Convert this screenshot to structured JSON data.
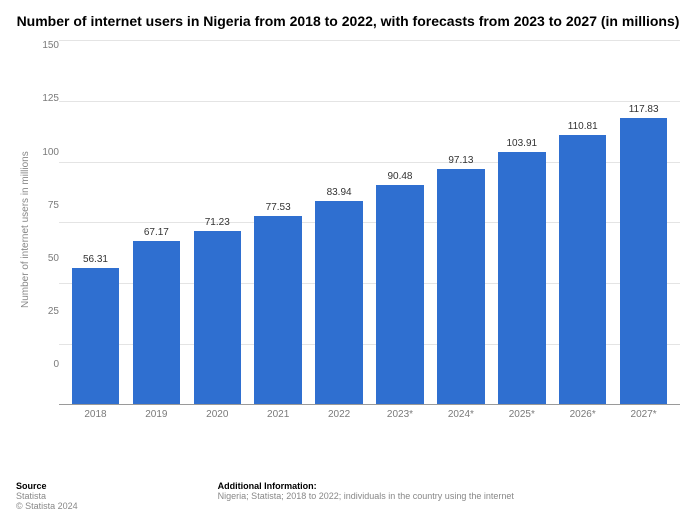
{
  "title": "Number of internet users in Nigeria from 2018 to 2022, with forecasts from 2023 to 2027 (in millions)",
  "chart": {
    "type": "bar",
    "ylabel": "Number of internet users in millions",
    "ylim": [
      0,
      150
    ],
    "ytick_step": 25,
    "yticks": [
      150,
      125,
      100,
      75,
      50,
      25,
      0
    ],
    "categories": [
      "2018",
      "2019",
      "2020",
      "2021",
      "2022",
      "2023*",
      "2024*",
      "2025*",
      "2026*",
      "2027*"
    ],
    "values": [
      56.31,
      67.17,
      71.23,
      77.53,
      83.94,
      90.48,
      97.13,
      103.91,
      110.81,
      117.83
    ],
    "bar_color": "#2f6fd0",
    "grid_color": "#e4e4e4",
    "axis_color": "#9a9a9a",
    "background_color": "#ffffff",
    "value_label_color": "#333333",
    "tick_label_color": "#7a7a7a",
    "ylabel_color": "#888888",
    "bar_width": 0.78,
    "title_fontsize": 14,
    "tick_fontsize": 10,
    "value_fontsize": 10
  },
  "footer": {
    "source_title": "Source",
    "source_body": "Statista",
    "copyright": "© Statista 2024",
    "addl_title": "Additional Information:",
    "addl_body": "Nigeria; Statista; 2018 to 2022; individuals in the country using the internet"
  }
}
